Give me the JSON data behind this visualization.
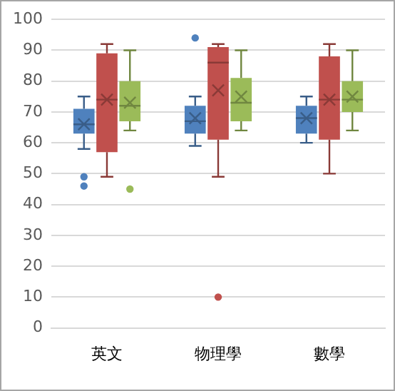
{
  "chart_data": {
    "type": "box",
    "categories": [
      "英文",
      "物理學",
      "數學"
    ],
    "series": [
      {
        "color": "#4f81bd",
        "boxes": [
          {
            "low": 58,
            "q1": 63,
            "median": 66,
            "q3": 71,
            "high": 75,
            "mean": 66,
            "outliers": [
              49,
              46
            ]
          },
          {
            "low": 59,
            "q1": 63,
            "median": 67,
            "q3": 72,
            "high": 75,
            "mean": 68,
            "outliers": [
              94
            ]
          },
          {
            "low": 60,
            "q1": 63,
            "median": 68,
            "q3": 72,
            "high": 75,
            "mean": 68
          }
        ]
      },
      {
        "color": "#c0504d",
        "boxes": [
          {
            "low": 49,
            "q1": 57,
            "median": 74,
            "q3": 89,
            "high": 92,
            "mean": 74
          },
          {
            "low": 49,
            "q1": 61,
            "median": 86,
            "q3": 91,
            "high": 92,
            "mean": 77,
            "outliers": [
              10
            ]
          },
          {
            "low": 50,
            "q1": 61,
            "median": 74,
            "q3": 88,
            "high": 92,
            "mean": 74
          }
        ]
      },
      {
        "color": "#9bbb59",
        "boxes": [
          {
            "low": 64,
            "q1": 67,
            "median": 72,
            "q3": 80,
            "high": 90,
            "mean": 73,
            "outliers": [
              45
            ]
          },
          {
            "low": 64,
            "q1": 67,
            "median": 73,
            "q3": 81,
            "high": 90,
            "mean": 75
          },
          {
            "low": 64,
            "q1": 70,
            "median": 74,
            "q3": 80,
            "high": 90,
            "mean": 75
          }
        ]
      }
    ],
    "ylim": [
      0,
      100
    ],
    "yticks": [
      0,
      10,
      20,
      30,
      40,
      50,
      60,
      70,
      80,
      90,
      100
    ],
    "grid": "y"
  }
}
